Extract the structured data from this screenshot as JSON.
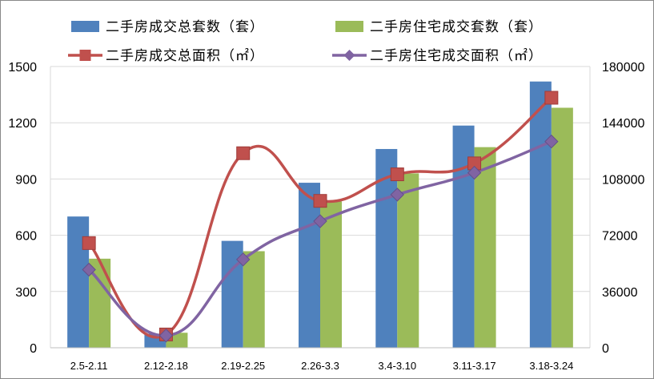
{
  "chart_data": {
    "type": "bar",
    "categories": [
      "2.5-2.11",
      "2.12-2.18",
      "2.19-2.25",
      "2.26-3.3",
      "3.4-3.10",
      "3.11-3.17",
      "3.18-3.24"
    ],
    "title": "",
    "xlabel": "",
    "ylabel": "",
    "y_left": {
      "range": [
        0,
        1500
      ],
      "ticks": [
        "0",
        "300",
        "600",
        "900",
        "1200",
        "1500"
      ]
    },
    "y_right": {
      "range": [
        0,
        180000
      ],
      "ticks": [
        "0",
        "36000",
        "72000",
        "108000",
        "144000",
        "180000"
      ]
    },
    "grid": true,
    "legend_position": "top",
    "series": [
      {
        "name": "二手房成交总套数（套）",
        "type": "bar",
        "axis": "left",
        "color": "#4F81BD",
        "values": [
          700,
          75,
          570,
          880,
          1060,
          1185,
          1420
        ]
      },
      {
        "name": "二手房住宅成交套数（套）",
        "type": "bar",
        "axis": "left",
        "color": "#9BBB59",
        "values": [
          475,
          80,
          515,
          780,
          930,
          1070,
          1280
        ]
      },
      {
        "name": "二手房成交总面积（㎡）",
        "type": "line",
        "axis": "right",
        "color": "#C0504D",
        "marker": "square",
        "values": [
          67000,
          8500,
          124500,
          94000,
          111000,
          118000,
          160000
        ]
      },
      {
        "name": "二手房住宅成交面积（㎡）",
        "type": "line",
        "axis": "right",
        "color": "#8064A2",
        "marker": "diamond",
        "values": [
          50000,
          7800,
          56500,
          81000,
          98000,
          112000,
          132000
        ]
      }
    ]
  }
}
